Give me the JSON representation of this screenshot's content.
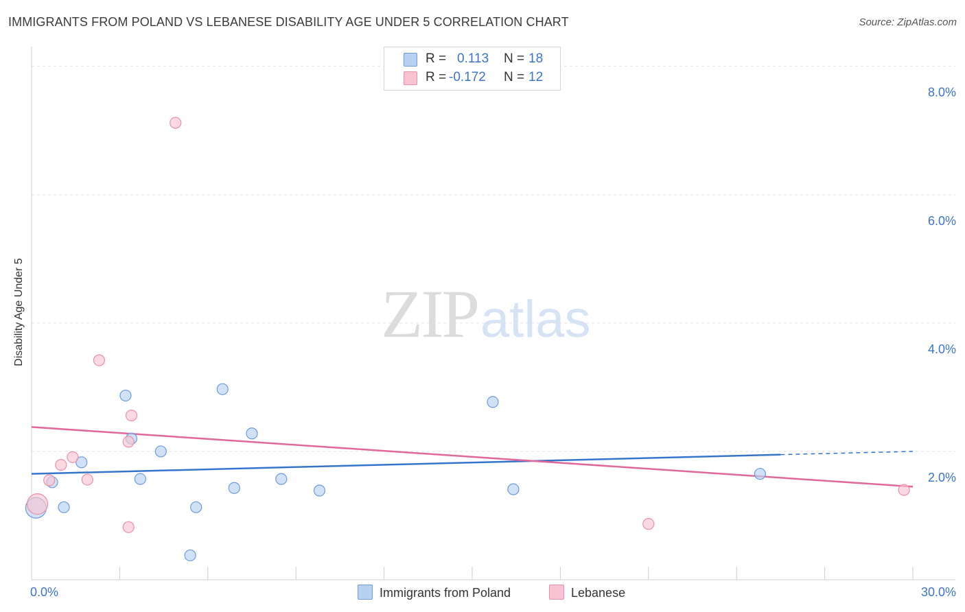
{
  "header": {
    "title": "IMMIGRANTS FROM POLAND VS LEBANESE DISABILITY AGE UNDER 5 CORRELATION CHART",
    "source": "Source: ZipAtlas.com"
  },
  "watermark": {
    "zip": "ZIP",
    "atlas": "atlas"
  },
  "legend": {
    "rows": [
      {
        "r_label": "R =",
        "r_value": "0.113",
        "n_label": "N =",
        "n_value": "18"
      },
      {
        "r_label": "R =",
        "r_value": "-0.172",
        "n_label": "N =",
        "n_value": "12"
      }
    ]
  },
  "colors": {
    "blue_fill": "#b8d1f2",
    "blue_stroke": "#6d9bd8",
    "blue_line": "#3475cc",
    "pink_fill": "#f8c4d3",
    "pink_stroke": "#e890ab",
    "pink_line": "#e0689a",
    "tick_label": "#3d74c8"
  },
  "chart_data": {
    "type": "scatter",
    "title": "IMMIGRANTS FROM POLAND VS LEBANESE DISABILITY AGE UNDER 5 CORRELATION CHART",
    "xlabel": "",
    "ylabel": "Disability Age Under 5",
    "xlim": [
      0,
      30
    ],
    "ylim": [
      0,
      8.2
    ],
    "x_tick_labels": [
      "0.0%",
      "30.0%"
    ],
    "y_ticks": [
      2,
      4,
      6,
      8
    ],
    "y_tick_labels": [
      "2.0%",
      "4.0%",
      "6.0%",
      "8.0%"
    ],
    "grid": true,
    "series": [
      {
        "name": "Immigrants from Poland",
        "color": "#b8d1f2",
        "points": [
          {
            "x": 0.15,
            "y": 1.12,
            "big": true
          },
          {
            "x": 0.7,
            "y": 1.52
          },
          {
            "x": 1.1,
            "y": 1.13
          },
          {
            "x": 1.7,
            "y": 1.83
          },
          {
            "x": 3.2,
            "y": 2.87
          },
          {
            "x": 3.4,
            "y": 2.2
          },
          {
            "x": 3.7,
            "y": 1.57
          },
          {
            "x": 4.4,
            "y": 2.0
          },
          {
            "x": 5.4,
            "y": 0.38
          },
          {
            "x": 5.6,
            "y": 1.13
          },
          {
            "x": 6.5,
            "y": 2.97
          },
          {
            "x": 6.9,
            "y": 1.43
          },
          {
            "x": 7.5,
            "y": 2.28
          },
          {
            "x": 8.5,
            "y": 1.57
          },
          {
            "x": 9.8,
            "y": 1.39
          },
          {
            "x": 15.7,
            "y": 2.77
          },
          {
            "x": 16.4,
            "y": 1.41
          },
          {
            "x": 24.8,
            "y": 1.65
          }
        ],
        "trend": {
          "x0": 0,
          "y0": 1.65,
          "x1": 25.5,
          "y1": 1.95,
          "dash_to_x": 30,
          "dash_to_y": 2.0
        }
      },
      {
        "name": "Lebanese",
        "color": "#f8c4d3",
        "points": [
          {
            "x": 0.2,
            "y": 1.18,
            "big": true
          },
          {
            "x": 0.6,
            "y": 1.55
          },
          {
            "x": 1.0,
            "y": 1.79
          },
          {
            "x": 1.4,
            "y": 1.91
          },
          {
            "x": 1.9,
            "y": 1.56
          },
          {
            "x": 2.3,
            "y": 3.42
          },
          {
            "x": 3.3,
            "y": 2.15
          },
          {
            "x": 3.3,
            "y": 0.82
          },
          {
            "x": 3.4,
            "y": 2.56
          },
          {
            "x": 4.9,
            "y": 7.12
          },
          {
            "x": 21.0,
            "y": 0.87
          },
          {
            "x": 29.7,
            "y": 1.4
          }
        ],
        "trend": {
          "x0": 0,
          "y0": 2.38,
          "x1": 30,
          "y1": 1.45
        }
      }
    ]
  }
}
